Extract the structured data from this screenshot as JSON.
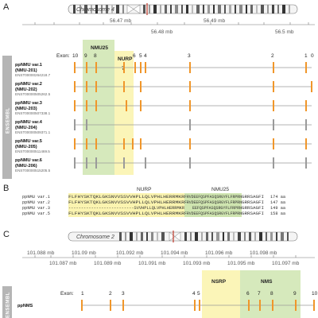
{
  "panels": {
    "a": {
      "letter": "A",
      "chromosome": "Chromosome 4",
      "coords": [
        "56.47 mb",
        "56.48 mb",
        "56.49 mb",
        "56.5 mb"
      ],
      "exon_label": "Exon:",
      "exon_numbers": [
        "10",
        "9",
        "8",
        "7",
        "6",
        "5",
        "4",
        "3",
        "2",
        "1",
        "0"
      ],
      "regions": {
        "nmu25": "NMU25",
        "nurp": "NURP"
      },
      "side_label": "ENSEMBL",
      "transcripts": [
        {
          "name": "ppNMU var.1",
          "code": "(NMU-201)",
          "id": "ENST00000264218.7"
        },
        {
          "name": "ppNMU var.2",
          "code": "(NMU-202)",
          "id": "ENST00000505262.5"
        },
        {
          "name": "ppNMU var.3",
          "code": "(NMU-203)",
          "id": "ENST00000507338.1"
        },
        {
          "name": "ppNMU var.4",
          "code": "(NMU-204)",
          "id": "ENST00000509371.1"
        },
        {
          "name": "ppNMU var.5",
          "code": "(NMU-205)",
          "id": "ENST00000511469.5"
        },
        {
          "name": "ppNMU var.6",
          "code": "(NMU-206)",
          "id": "ENST00000515205.5"
        }
      ]
    },
    "b": {
      "letter": "B",
      "headers": {
        "nurp": "NURP",
        "nmu25": "NMU25"
      },
      "rows": [
        {
          "name": "ppNMU var.1",
          "nurp": "FLFHYSKTQKLGKSNVVSSVVHPLLQLVPHLHERRMKR",
          "nmu25": "FRVDEEFQSPFASQSRGYFLFRPRN",
          "tail": "GRRSAGFI",
          "len": "174 aa"
        },
        {
          "name": "ppNMU var.2",
          "nurp": "FLFHYSKTQKLGKSNVVSSVVHPLLQLVPHLHERRMKR",
          "nmu25": "FRVDEEFQSPFASQSRGYFLFRPRN",
          "tail": "GRRSAGFI",
          "len": "147 aa"
        },
        {
          "name": "ppNMU var.3",
          "nurp": "--------------------------SVVHPLLQLVPHLHERRMKR",
          "nmu25": "EEFQSPFASQSRGYFLFRPRN",
          "tail": "GRRSAGFI",
          "len": "149 aa"
        },
        {
          "name": "ppNMU var.5",
          "nurp": "FLFHYSKTQKLGKSNVVSSVVHPLLQLVPHLHERRMKR",
          "nmu25": "FRVDEEFQSPFASQSRGYFLFRPRN",
          "tail": "GRRSAGFI",
          "len": "158 aa"
        }
      ]
    },
    "c": {
      "letter": "C",
      "chromosome": "Chromosome 2",
      "coords_top": [
        "101.088 mb",
        "101.09 mb",
        "101.092 mb",
        "101.094 mb",
        "101.096 mb",
        "101.098 mb"
      ],
      "coords_bottom": [
        "101.087 mb",
        "101.089 mb",
        "101.091 mb",
        "101.093 mb",
        "101.095 mb",
        "101.097 mb",
        "101.099 mb"
      ],
      "exon_label": "Exon:",
      "exon_numbers": [
        "1",
        "2",
        "3",
        "4",
        "5",
        "6",
        "7",
        "8",
        "9",
        "10"
      ],
      "regions": {
        "nsrp": "NSRP",
        "nms": "NMS"
      },
      "side_label": "ENSEMBL",
      "transcript": "ppNMS"
    }
  },
  "colors": {
    "exon": "#f0962a",
    "intron": "#9a9a9a",
    "nmu_region": "#cfe5b0",
    "nurp_region": "#fbf4b0",
    "side_bar": "#b5b5b5",
    "centromere": "#c0392b"
  }
}
